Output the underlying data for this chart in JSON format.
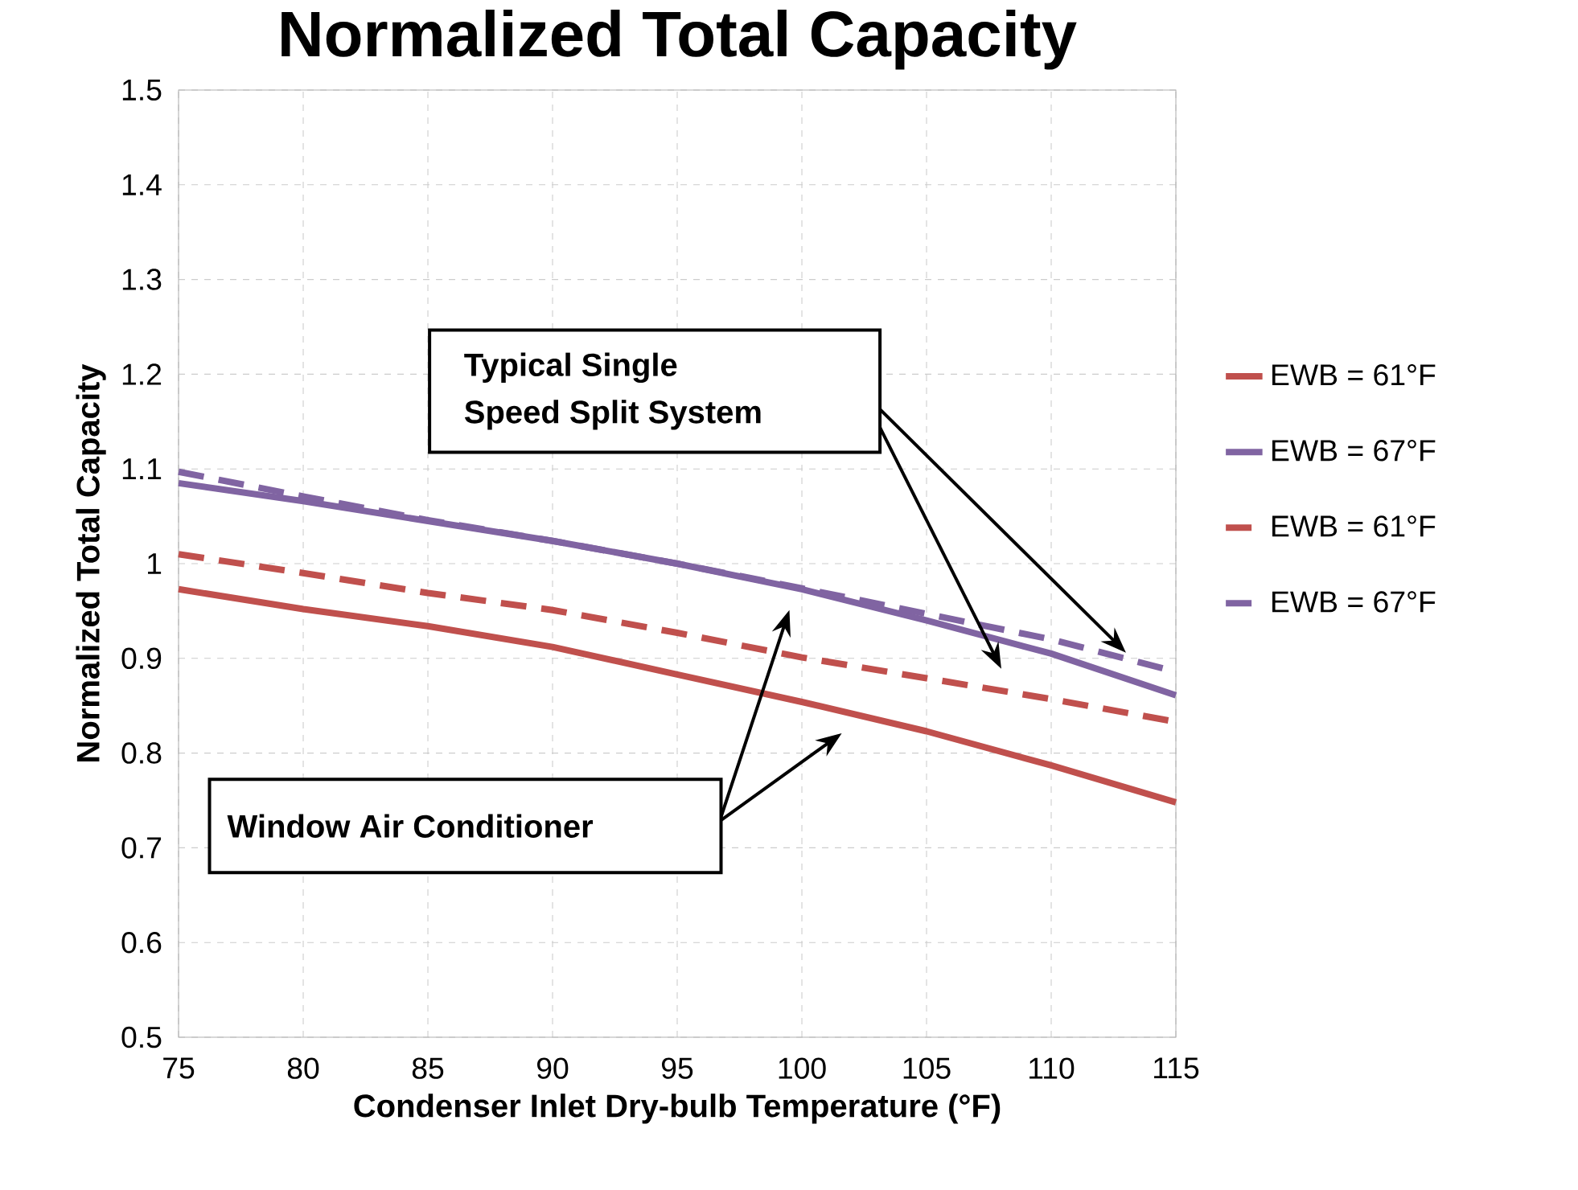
{
  "chart_data": {
    "type": "line",
    "title": "Normalized Total Capacity",
    "xlabel": "Condenser Inlet Dry-bulb Temperature (°F)",
    "ylabel": "Normalized Total Capacity",
    "x": [
      75,
      80,
      85,
      90,
      95,
      100,
      105,
      110,
      115
    ],
    "series": [
      {
        "name": "EWB = 61°F",
        "color": "#c0504d",
        "line_style": "solid",
        "values": [
          0.973,
          0.952,
          0.934,
          0.912,
          0.883,
          0.854,
          0.823,
          0.787,
          0.748
        ]
      },
      {
        "name": "EWB = 67°F",
        "color": "#8064a2",
        "line_style": "solid",
        "values": [
          1.085,
          1.066,
          1.045,
          1.024,
          1.0,
          0.973,
          0.94,
          0.905,
          0.861
        ]
      },
      {
        "name": "EWB = 61°F",
        "color": "#c0504d",
        "line_style": "dashed",
        "values": [
          1.01,
          0.99,
          0.969,
          0.951,
          0.927,
          0.901,
          0.879,
          0.857,
          0.833
        ]
      },
      {
        "name": "EWB = 67°F",
        "color": "#8064a2",
        "line_style": "dashed",
        "values": [
          1.097,
          1.071,
          1.046,
          1.024,
          1.0,
          0.974,
          0.947,
          0.92,
          0.886
        ]
      }
    ],
    "xlim": [
      75,
      115
    ],
    "xticks": [
      75,
      80,
      85,
      90,
      95,
      100,
      105,
      110,
      115
    ],
    "ylim": [
      0.5,
      1.5
    ],
    "yticks": [
      0.5,
      0.6,
      0.7,
      0.8,
      0.9,
      1,
      1.1,
      1.2,
      1.3,
      1.4,
      1.5
    ],
    "grid": true,
    "legend": "right",
    "marker": "none",
    "annotations": [
      "Typical Single\nSpeed Split System",
      "Window Air Conditioner"
    ]
  }
}
